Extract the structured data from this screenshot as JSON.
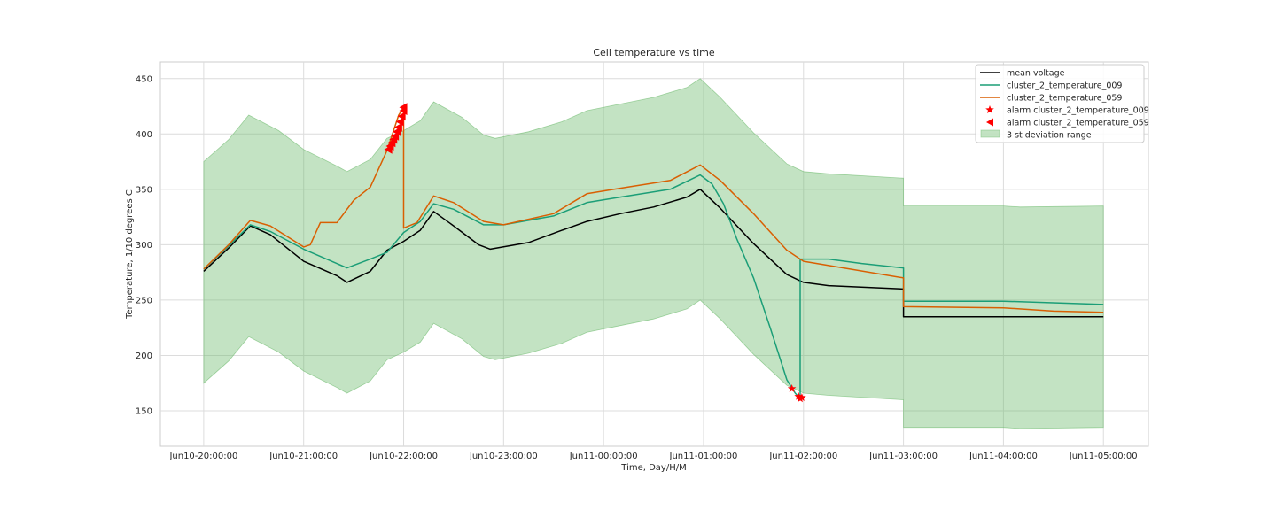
{
  "chart_data": {
    "type": "line",
    "title": "Cell temperature vs time",
    "xlabel": "Time, Day/H/M",
    "ylabel": "Temperature, 1/10 degrees C",
    "x_ticks": [
      "Jun10-20:00:00",
      "Jun10-21:00:00",
      "Jun10-22:00:00",
      "Jun10-23:00:00",
      "Jun11-00:00:00",
      "Jun11-01:00:00",
      "Jun11-02:00:00",
      "Jun11-03:00:00",
      "Jun11-04:00:00",
      "Jun11-05:00:00"
    ],
    "y_ticks": [
      150,
      200,
      250,
      300,
      350,
      400,
      450
    ],
    "xlim": [
      "Jun10-19:34",
      "Jun11-05:27"
    ],
    "ylim": [
      118,
      465
    ],
    "grid": true,
    "legend_position": "top-right",
    "series": [
      {
        "name": "mean voltage",
        "color": "#000000",
        "points": [
          [
            "Jun10-20:00",
            276
          ],
          [
            "Jun10-20:15",
            297
          ],
          [
            "Jun10-20:28",
            317
          ],
          [
            "Jun10-20:40",
            309
          ],
          [
            "Jun10-21:00",
            285
          ],
          [
            "Jun10-21:20",
            272
          ],
          [
            "Jun10-21:26",
            266
          ],
          [
            "Jun10-21:40",
            276
          ],
          [
            "Jun10-21:50",
            295
          ],
          [
            "Jun10-22:00",
            303
          ],
          [
            "Jun10-22:10",
            313
          ],
          [
            "Jun10-22:18",
            330
          ],
          [
            "Jun10-22:30",
            317
          ],
          [
            "Jun10-22:45",
            300
          ],
          [
            "Jun10-22:52",
            296
          ],
          [
            "Jun10-23:15",
            302
          ],
          [
            "Jun10-23:35",
            313
          ],
          [
            "Jun10-23:50",
            321
          ],
          [
            "Jun11-00:10",
            328
          ],
          [
            "Jun11-00:30",
            334
          ],
          [
            "Jun11-00:50",
            343
          ],
          [
            "Jun11-00:58",
            350
          ],
          [
            "Jun11-01:10",
            333
          ],
          [
            "Jun11-01:30",
            301
          ],
          [
            "Jun11-01:50",
            273
          ],
          [
            "Jun11-02:00",
            266
          ],
          [
            "Jun11-02:15",
            263
          ],
          [
            "Jun11-03:00",
            260
          ],
          [
            "Jun11-03:00",
            235
          ],
          [
            "Jun11-04:00",
            235
          ],
          [
            "Jun11-05:00",
            235
          ]
        ]
      },
      {
        "name": "cluster_2_temperature_009",
        "color": "#1b9e77",
        "points": [
          [
            "Jun10-20:00",
            278
          ],
          [
            "Jun10-20:15",
            299
          ],
          [
            "Jun10-20:28",
            318
          ],
          [
            "Jun10-20:40",
            312
          ],
          [
            "Jun10-21:00",
            296
          ],
          [
            "Jun10-21:26",
            279
          ],
          [
            "Jun10-21:40",
            287
          ],
          [
            "Jun10-21:50",
            293
          ],
          [
            "Jun10-22:00",
            311
          ],
          [
            "Jun10-22:10",
            321
          ],
          [
            "Jun10-22:18",
            337
          ],
          [
            "Jun10-22:30",
            332
          ],
          [
            "Jun10-22:48",
            318
          ],
          [
            "Jun10-23:00",
            318
          ],
          [
            "Jun10-23:30",
            326
          ],
          [
            "Jun10-23:50",
            338
          ],
          [
            "Jun11-00:10",
            343
          ],
          [
            "Jun11-00:40",
            350
          ],
          [
            "Jun11-00:58",
            363
          ],
          [
            "Jun11-01:05",
            355
          ],
          [
            "Jun11-01:12",
            337
          ],
          [
            "Jun11-01:20",
            305
          ],
          [
            "Jun11-01:30",
            270
          ],
          [
            "Jun11-01:40",
            225
          ],
          [
            "Jun11-01:50",
            178
          ],
          [
            "Jun11-01:55",
            166
          ],
          [
            "Jun11-01:58",
            161
          ],
          [
            "Jun11-01:58",
            287
          ],
          [
            "Jun11-02:15",
            287
          ],
          [
            "Jun11-02:35",
            283
          ],
          [
            "Jun11-03:00",
            279
          ],
          [
            "Jun11-03:00",
            249
          ],
          [
            "Jun11-04:00",
            249
          ],
          [
            "Jun11-05:00",
            246
          ]
        ]
      },
      {
        "name": "cluster_2_temperature_059",
        "color": "#d95f02",
        "points": [
          [
            "Jun10-20:00",
            278
          ],
          [
            "Jun10-20:15",
            300
          ],
          [
            "Jun10-20:28",
            322
          ],
          [
            "Jun10-20:40",
            317
          ],
          [
            "Jun10-21:00",
            298
          ],
          [
            "Jun10-21:04",
            300
          ],
          [
            "Jun10-21:10",
            320
          ],
          [
            "Jun10-21:20",
            320
          ],
          [
            "Jun10-21:30",
            340
          ],
          [
            "Jun10-21:40",
            352
          ],
          [
            "Jun10-21:50",
            385
          ],
          [
            "Jun10-21:57",
            417
          ],
          [
            "Jun10-22:00",
            424
          ],
          [
            "Jun10-22:00",
            315
          ],
          [
            "Jun10-22:08",
            320
          ],
          [
            "Jun10-22:18",
            344
          ],
          [
            "Jun10-22:30",
            338
          ],
          [
            "Jun10-22:48",
            321
          ],
          [
            "Jun10-23:00",
            318
          ],
          [
            "Jun10-23:30",
            328
          ],
          [
            "Jun10-23:50",
            346
          ],
          [
            "Jun11-00:10",
            351
          ],
          [
            "Jun11-00:40",
            358
          ],
          [
            "Jun11-00:58",
            372
          ],
          [
            "Jun11-01:10",
            358
          ],
          [
            "Jun11-01:30",
            328
          ],
          [
            "Jun11-01:50",
            295
          ],
          [
            "Jun11-02:00",
            285
          ],
          [
            "Jun11-02:20",
            280
          ],
          [
            "Jun11-03:00",
            270
          ],
          [
            "Jun11-03:00",
            244
          ],
          [
            "Jun11-04:00",
            243
          ],
          [
            "Jun11-04:30",
            240
          ],
          [
            "Jun11-05:00",
            239
          ]
        ]
      }
    ],
    "alarms": [
      {
        "name": "alarm cluster_2_temperature_009",
        "color": "#ff0000",
        "marker": "star",
        "points": [
          [
            "Jun11-01:53",
            170
          ],
          [
            "Jun11-01:57",
            163
          ],
          [
            "Jun11-01:58",
            161
          ],
          [
            "Jun11-01:59",
            162
          ]
        ]
      },
      {
        "name": "alarm cluster_2_temperature_059",
        "color": "#ff0000",
        "marker": "triangle-left",
        "points": [
          [
            "Jun10-21:51",
            386
          ],
          [
            "Jun10-21:52",
            389
          ],
          [
            "Jun10-21:53",
            392
          ],
          [
            "Jun10-21:54",
            395
          ],
          [
            "Jun10-21:55",
            398
          ],
          [
            "Jun10-21:56",
            402
          ],
          [
            "Jun10-21:57",
            406
          ],
          [
            "Jun10-21:58",
            411
          ],
          [
            "Jun10-21:59",
            416
          ],
          [
            "Jun10-22:00",
            421
          ],
          [
            "Jun10-22:00",
            424
          ]
        ]
      }
    ],
    "band": {
      "name": "3 st deviation range",
      "color": "#6ab96a",
      "points": [
        [
          "Jun10-20:00",
          175,
          375
        ],
        [
          "Jun10-20:15",
          195,
          395
        ],
        [
          "Jun10-20:27",
          217,
          417
        ],
        [
          "Jun10-20:45",
          203,
          403
        ],
        [
          "Jun10-21:00",
          186,
          386
        ],
        [
          "Jun10-21:20",
          171,
          371
        ],
        [
          "Jun10-21:26",
          166,
          366
        ],
        [
          "Jun10-21:40",
          177,
          377
        ],
        [
          "Jun10-21:50",
          196,
          396
        ],
        [
          "Jun10-22:00",
          203,
          403
        ],
        [
          "Jun10-22:10",
          212,
          412
        ],
        [
          "Jun10-22:18",
          229,
          429
        ],
        [
          "Jun10-22:35",
          215,
          415
        ],
        [
          "Jun10-22:48",
          199,
          399
        ],
        [
          "Jun10-22:55",
          196,
          396
        ],
        [
          "Jun10-23:15",
          202,
          402
        ],
        [
          "Jun10-23:35",
          211,
          411
        ],
        [
          "Jun10-23:50",
          221,
          421
        ],
        [
          "Jun11-00:10",
          227,
          427
        ],
        [
          "Jun11-00:30",
          233,
          433
        ],
        [
          "Jun11-00:50",
          242,
          442
        ],
        [
          "Jun11-00:58",
          250,
          450
        ],
        [
          "Jun11-01:10",
          233,
          433
        ],
        [
          "Jun11-01:30",
          201,
          401
        ],
        [
          "Jun11-01:50",
          173,
          373
        ],
        [
          "Jun11-02:00",
          166,
          366
        ],
        [
          "Jun11-02:15",
          164,
          364
        ],
        [
          "Jun11-03:00",
          160,
          360
        ],
        [
          "Jun11-03:00",
          135,
          335
        ],
        [
          "Jun11-04:00",
          135,
          335
        ],
        [
          "Jun11-04:10",
          134,
          334
        ],
        [
          "Jun11-05:00",
          135,
          335
        ]
      ]
    }
  }
}
